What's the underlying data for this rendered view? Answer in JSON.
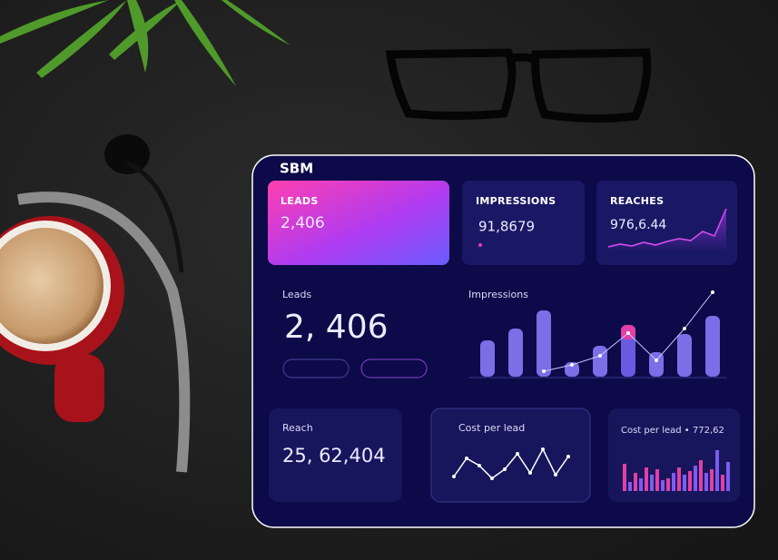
{
  "header": {
    "brand": "SBM"
  },
  "cards": [
    {
      "label": "LEADS",
      "value": "2,406"
    },
    {
      "label": "IMPRESSIONS",
      "value": "91,8679"
    },
    {
      "label": "REACHES",
      "value": "976,6.44",
      "trend": [
        3,
        6,
        4,
        8,
        5,
        9,
        12,
        10,
        20,
        15,
        45
      ]
    }
  ],
  "leads": {
    "title": "Leads",
    "value": "2, 406"
  },
  "impressions": {
    "title": "Impressions",
    "bars": [
      40,
      53,
      73,
      16,
      34,
      57,
      27,
      47,
      67
    ],
    "line": [
      null,
      null,
      3,
      10,
      20,
      45,
      15,
      50,
      90
    ]
  },
  "reach": {
    "title": "Reach",
    "value": "25, 62,404"
  },
  "cost_per_lead": {
    "title": "Cost per lead",
    "line": [
      10,
      30,
      22,
      8,
      18,
      35,
      14,
      40,
      12,
      32
    ]
  },
  "cost_per_lead_total": {
    "title": "Cost per lead • 772,62",
    "colors": [
      "#e23fa8",
      "#7c5cf0"
    ],
    "bars": [
      30,
      10,
      20,
      14,
      26,
      18,
      24,
      12,
      14,
      20,
      26,
      18,
      22,
      28,
      34,
      20,
      24,
      45,
      18,
      32
    ]
  }
}
